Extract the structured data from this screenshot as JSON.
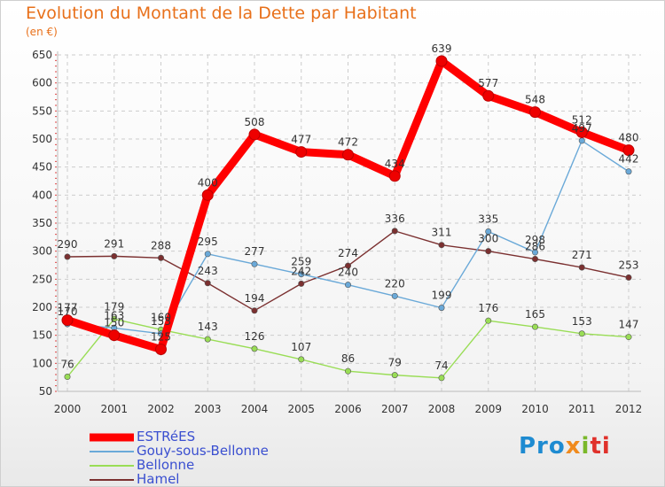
{
  "title": "Evolution du Montant de la Dette par Habitant",
  "subtitle": "(en €)",
  "brand": {
    "p1": "Pro",
    "p2": "x",
    "p3": "i",
    "p4": "ti"
  },
  "chart_data": {
    "type": "line",
    "x": [
      "2000",
      "2001",
      "2002",
      "2003",
      "2004",
      "2005",
      "2006",
      "2007",
      "2008",
      "2009",
      "2010",
      "2011",
      "2012"
    ],
    "ylim": [
      50,
      650
    ],
    "yticks": [
      50,
      100,
      150,
      200,
      250,
      300,
      350,
      400,
      450,
      500,
      550,
      600,
      650
    ],
    "grid": true,
    "legend_position": "bottom-left",
    "series": [
      {
        "name": "ESTRéES",
        "color": "#ff0000",
        "values": [
          177,
          150,
          125,
          400,
          508,
          477,
          472,
          434,
          639,
          577,
          548,
          512,
          480
        ]
      },
      {
        "name": "Gouy-sous-Bellonne",
        "color": "#6aa9d8",
        "values": [
          170,
          163,
          153,
          295,
          277,
          259,
          240,
          220,
          199,
          335,
          298,
          497,
          442
        ]
      },
      {
        "name": "Bellonne",
        "color": "#99dd55",
        "values": [
          76,
          179,
          160,
          143,
          126,
          107,
          86,
          79,
          74,
          176,
          165,
          153,
          147
        ]
      },
      {
        "name": "Hamel",
        "color": "#7b3030",
        "values": [
          290,
          291,
          288,
          243,
          194,
          242,
          274,
          336,
          311,
          300,
          286,
          271,
          253
        ]
      }
    ]
  }
}
